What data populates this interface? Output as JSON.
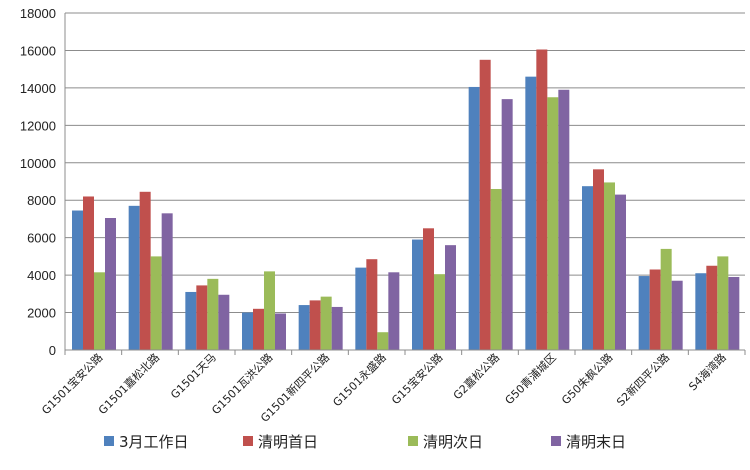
{
  "chart_data": {
    "type": "bar",
    "categories": [
      "G1501宝安公路",
      "G1501嘉松北路",
      "G1501天马",
      "G1501瓦洪公路",
      "G1501新四平公路",
      "G1501永盛路",
      "G15宝安公路",
      "G2嘉松公路",
      "G50青浦城区",
      "G50朱枫公路",
      "S2新四平公路",
      "S4海湾路"
    ],
    "series": [
      {
        "name": "3月工作日",
        "color": "#4F81BD",
        "values": [
          7450,
          7700,
          3100,
          2000,
          2400,
          4400,
          5900,
          14050,
          14600,
          8750,
          3950,
          4100
        ]
      },
      {
        "name": "清明首日",
        "color": "#C0504D",
        "values": [
          8200,
          8450,
          3450,
          2200,
          2650,
          4850,
          6500,
          15500,
          16050,
          9650,
          4300,
          4500
        ]
      },
      {
        "name": "清明次日",
        "color": "#9BBB59",
        "values": [
          4150,
          5000,
          3800,
          4200,
          2850,
          950,
          4050,
          8600,
          13500,
          8950,
          5400,
          5000
        ]
      },
      {
        "name": "清明末日",
        "color": "#8064A2",
        "values": [
          7050,
          7300,
          2950,
          1950,
          2300,
          4150,
          5600,
          13400,
          13900,
          8300,
          3700,
          3900
        ]
      }
    ],
    "ylim": [
      0,
      18000
    ],
    "yticks": [
      0,
      2000,
      4000,
      6000,
      8000,
      10000,
      12000,
      14000,
      16000,
      18000
    ],
    "grid": true,
    "legend": "bottom"
  }
}
